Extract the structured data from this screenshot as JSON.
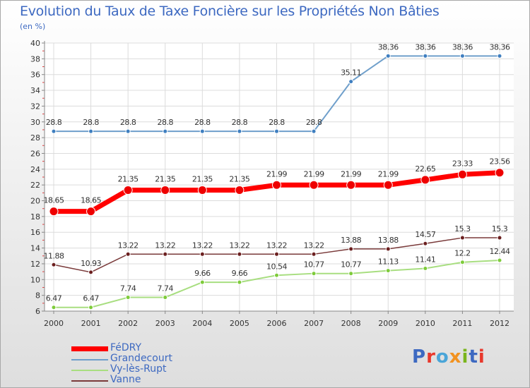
{
  "page": {
    "title": "Evolution du Taux de Taxe Foncière sur les Propriétés Non Bâties",
    "subtitle": "(en %)"
  },
  "logo": {
    "text": "Proxiti",
    "colors": [
      "#3d69c1",
      "#e8382c",
      "#4aa5d8",
      "#f29220",
      "#7ab51d",
      "#3d69c1",
      "#e8382c"
    ]
  },
  "chart_data": {
    "type": "line",
    "x": [
      "2000",
      "2001",
      "2002",
      "2003",
      "2004",
      "2005",
      "2006",
      "2007",
      "2008",
      "2009",
      "2010",
      "2011",
      "2012"
    ],
    "ylim": [
      6,
      40
    ],
    "yticks": [
      6,
      8,
      10,
      12,
      14,
      16,
      18,
      20,
      22,
      24,
      26,
      28,
      30,
      32,
      34,
      36,
      38,
      40
    ],
    "grid": true,
    "legend_position": "bottom-left",
    "series": [
      {
        "name": "Grandecourt",
        "color": "#6f9fcb",
        "point_color": "#3f7fc0",
        "line_width": 2,
        "point_radius": 3,
        "values": [
          28.8,
          28.8,
          28.8,
          28.8,
          28.8,
          28.8,
          28.8,
          28.8,
          35.11,
          38.36,
          38.36,
          38.36,
          38.36
        ],
        "labels": [
          "28.8",
          "28.8",
          "28.8",
          "28.8",
          "28.8",
          "28.8",
          "28.8",
          "28.8",
          "35.11",
          "38.36",
          "38.36",
          "38.36",
          "38.36"
        ]
      },
      {
        "name": "Vanne",
        "color": "#7a3a3a",
        "point_color": "#6b1f1f",
        "line_width": 1.5,
        "point_radius": 3,
        "values": [
          11.88,
          10.93,
          13.22,
          13.22,
          13.22,
          13.22,
          13.22,
          13.22,
          13.88,
          13.88,
          14.57,
          15.3,
          15.3
        ],
        "labels": [
          "11.88",
          "10.93",
          "13.22",
          "13.22",
          "13.22",
          "13.22",
          "13.22",
          "13.22",
          "13.88",
          "13.88",
          "14.57",
          "15.3",
          "15.3"
        ]
      },
      {
        "name": "Vy-lès-Rupt",
        "color": "#a8de80",
        "point_color": "#7ecb3a",
        "line_width": 2,
        "point_radius": 3,
        "values": [
          6.47,
          6.47,
          7.74,
          7.74,
          9.66,
          9.66,
          10.54,
          10.77,
          10.77,
          11.13,
          11.41,
          12.2,
          12.44
        ],
        "labels": [
          "6.47",
          "6.47",
          "7.74",
          "7.74",
          "9.66",
          "9.66",
          "10.54",
          "10.77",
          "10.77",
          "11.13",
          "11.41",
          "12.2",
          "12.44"
        ]
      },
      {
        "name": "FéDRY",
        "color": "#ff0000",
        "point_color": "#ee0000",
        "line_width": 7,
        "point_radius": 6,
        "values": [
          18.65,
          18.65,
          21.35,
          21.35,
          21.35,
          21.35,
          21.99,
          21.99,
          21.99,
          21.99,
          22.65,
          23.33,
          23.56
        ],
        "labels": [
          "18.65",
          "18.65",
          "21.35",
          "21.35",
          "21.35",
          "21.35",
          "21.99",
          "21.99",
          "21.99",
          "21.99",
          "22.65",
          "23.33",
          "23.56"
        ]
      }
    ]
  },
  "legend": [
    {
      "label": "FéDRY",
      "color": "#ff0000",
      "thickness": 7
    },
    {
      "label": "Grandecourt",
      "color": "#6f9fcb",
      "thickness": 2
    },
    {
      "label": "Vy-lès-Rupt",
      "color": "#a8de80",
      "thickness": 2
    },
    {
      "label": "Vanne",
      "color": "#7a3a3a",
      "thickness": 2
    }
  ]
}
